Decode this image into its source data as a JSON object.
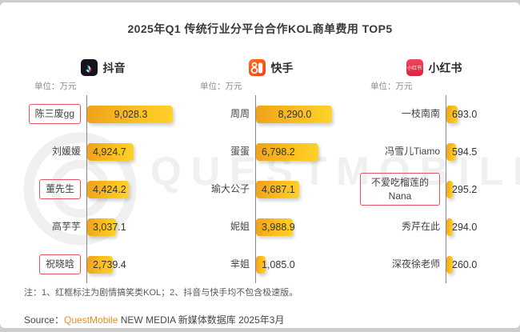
{
  "title": "2025年Q1 传统行业分平台合作KOL商单费用 TOP5",
  "notes": "注：1、红框标注为剧情搞笑类KOL；2、抖音与快手均不包含极速版。",
  "source": {
    "label": "Source：",
    "brand": "QuestMobile",
    "suffix": " NEW MEDIA 新媒体数据库 2025年3月"
  },
  "watermark": {
    "text": "QUESTMOBILE"
  },
  "colors": {
    "bar_gradient_start": "#efa21c",
    "bar_gradient_end": "#ffd22b",
    "highlight_box_red": "#e0575f",
    "brand_orange": "#f08c1e",
    "douyin_icon_bg": "#16131f",
    "kuaishou_icon_bg": "#fc4f08",
    "xiaohongshu_icon_bg": "#e33b52",
    "axis_line": "#888888"
  },
  "chart_data": [
    {
      "type": "bar",
      "orientation": "horizontal",
      "platform": "抖音",
      "platform_icon": "douyin-icon",
      "unit_label": "单位：万元",
      "value_unit": "万元",
      "categories": [
        "陈三废gg",
        "刘媛媛",
        "董先生",
        "高芋芋",
        "祝晓晗"
      ],
      "values": [
        9028.3,
        4924.7,
        4424.2,
        3037.1,
        2739.4
      ],
      "red_boxed": [
        true,
        false,
        true,
        false,
        true
      ],
      "red_box_meaning": "剧情搞笑类KOL"
    },
    {
      "type": "bar",
      "orientation": "horizontal",
      "platform": "快手",
      "platform_icon": "kuaishou-icon",
      "unit_label": "单位：万元",
      "value_unit": "万元",
      "categories": [
        "周周",
        "蛋蛋",
        "瑜大公子",
        "妮姐",
        "芈姐"
      ],
      "values": [
        8290.0,
        6798.2,
        4687.1,
        3988.9,
        1085.0
      ],
      "red_boxed": [
        false,
        false,
        false,
        false,
        false
      ],
      "red_box_meaning": "剧情搞笑类KOL"
    },
    {
      "type": "bar",
      "orientation": "horizontal",
      "platform": "小红书",
      "platform_icon": "xiaohongshu-icon",
      "unit_label": "单位：万元",
      "value_unit": "万元",
      "categories": [
        "一枝南南",
        "冯雪儿Tiamo",
        "不爱吃榴莲的Nana",
        "秀芹在此",
        "深夜徐老师"
      ],
      "values": [
        693.0,
        594.5,
        295.2,
        294.0,
        260.0
      ],
      "red_boxed": [
        false,
        false,
        true,
        false,
        false
      ],
      "red_box_meaning": "剧情搞笑类KOL"
    }
  ]
}
